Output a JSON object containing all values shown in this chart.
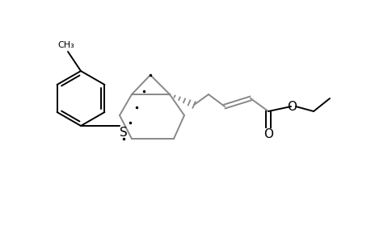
{
  "bg_color": "#ffffff",
  "line_color": "#000000",
  "gray_color": "#888888",
  "S_label": "S",
  "O_label": "O",
  "O2_label": "O",
  "figsize": [
    4.6,
    3.0
  ],
  "dpi": 100
}
